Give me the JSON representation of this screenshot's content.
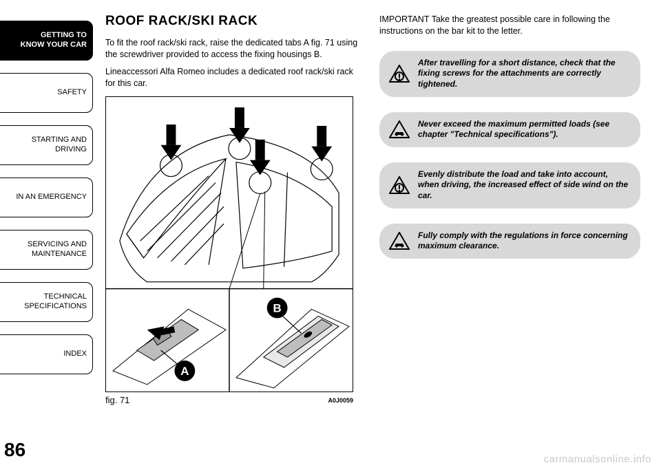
{
  "sidebar": {
    "tabs": [
      {
        "label": "GETTING TO\nKNOW YOUR CAR",
        "active": true
      },
      {
        "label": "SAFETY",
        "active": false
      },
      {
        "label": "STARTING AND\nDRIVING",
        "active": false
      },
      {
        "label": "IN AN EMERGENCY",
        "active": false
      },
      {
        "label": "SERVICING AND\nMAINTENANCE",
        "active": false
      },
      {
        "label": "TECHNICAL\nSPECIFICATIONS",
        "active": false
      },
      {
        "label": "INDEX",
        "active": false
      }
    ],
    "page_number": "86"
  },
  "left": {
    "heading": "ROOF RACK/SKI RACK",
    "para1": "To fit the roof rack/ski rack, raise the dedicated tabs A fig. 71 using the screwdriver provided to access the fixing housings B.",
    "para2": "Lineaccessori Alfa Romeo includes a dedicated roof rack/ski rack for this car.",
    "fig_label": "fig. 71",
    "fig_code": "A0J0059",
    "marker_a": "A",
    "marker_b": "B"
  },
  "right": {
    "important_label": "IMPORTANT",
    "important_text": "Take the greatest possible care in following the instructions on the bar kit to the letter.",
    "callouts": [
      {
        "icon": "info",
        "text": "After travelling for a short distance, check that the fixing screws for the attachments are correctly tightened."
      },
      {
        "icon": "car",
        "text": "Never exceed the maximum permitted loads (see chapter \"Technical specifications\")."
      },
      {
        "icon": "info",
        "text": "Evenly distribute the load and take into account, when driving, the increased effect of side wind on the car."
      },
      {
        "icon": "car",
        "text": "Fully comply with the regulations in force concerning maximum clearance."
      }
    ]
  },
  "watermark": "carmanualsonline.info",
  "colors": {
    "callout_bg": "#d8d8d8",
    "watermark": "#c9c9c9"
  }
}
